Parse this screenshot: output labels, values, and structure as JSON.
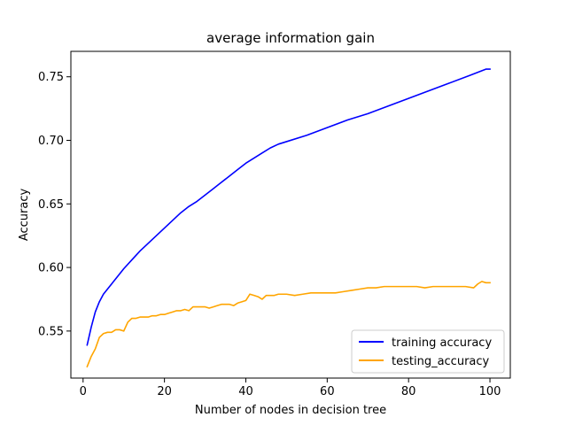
{
  "chart_data": {
    "type": "line",
    "title": "average information gain",
    "xlabel": "Number of nodes in decision tree",
    "ylabel": "Accuracy",
    "xlim": [
      -3,
      105
    ],
    "ylim": [
      0.513,
      0.77
    ],
    "xticks": [
      0,
      20,
      40,
      60,
      80,
      100
    ],
    "xtick_labels": [
      "0",
      "20",
      "40",
      "60",
      "80",
      "100"
    ],
    "yticks": [
      0.55,
      0.6,
      0.65,
      0.7,
      0.75
    ],
    "ytick_labels": [
      "0.55",
      "0.60",
      "0.65",
      "0.70",
      "0.75"
    ],
    "grid": false,
    "legend_position": "lower-right",
    "series": [
      {
        "name": "training accuracy",
        "color": "#0000ff",
        "x": [
          1,
          2,
          3,
          4,
          5,
          6,
          8,
          10,
          12,
          14,
          16,
          18,
          20,
          22,
          24,
          26,
          28,
          30,
          32,
          34,
          36,
          38,
          40,
          42,
          44,
          46,
          48,
          50,
          55,
          60,
          65,
          70,
          75,
          80,
          85,
          90,
          95,
          99,
          100
        ],
        "y": [
          0.539,
          0.553,
          0.565,
          0.573,
          0.579,
          0.583,
          0.591,
          0.599,
          0.606,
          0.613,
          0.619,
          0.625,
          0.631,
          0.637,
          0.643,
          0.648,
          0.652,
          0.657,
          0.662,
          0.667,
          0.672,
          0.677,
          0.682,
          0.686,
          0.69,
          0.694,
          0.697,
          0.699,
          0.704,
          0.71,
          0.716,
          0.721,
          0.727,
          0.733,
          0.739,
          0.745,
          0.751,
          0.756,
          0.756
        ]
      },
      {
        "name": "testing_accuracy",
        "color": "#ffa500",
        "x": [
          1,
          2,
          3,
          4,
          5,
          6,
          7,
          8,
          9,
          10,
          11,
          12,
          13,
          14,
          15,
          16,
          17,
          18,
          19,
          20,
          21,
          22,
          23,
          24,
          25,
          26,
          27,
          28,
          29,
          30,
          31,
          32,
          33,
          34,
          35,
          36,
          37,
          38,
          39,
          40,
          41,
          42,
          43,
          44,
          45,
          46,
          47,
          48,
          49,
          50,
          52,
          54,
          56,
          58,
          60,
          62,
          64,
          66,
          68,
          70,
          72,
          74,
          76,
          78,
          80,
          82,
          84,
          86,
          88,
          90,
          92,
          94,
          96,
          97,
          98,
          99,
          100
        ],
        "y": [
          0.522,
          0.53,
          0.536,
          0.545,
          0.548,
          0.549,
          0.549,
          0.551,
          0.551,
          0.55,
          0.557,
          0.56,
          0.56,
          0.561,
          0.561,
          0.561,
          0.562,
          0.562,
          0.563,
          0.563,
          0.564,
          0.565,
          0.566,
          0.566,
          0.567,
          0.566,
          0.569,
          0.569,
          0.569,
          0.569,
          0.568,
          0.569,
          0.57,
          0.571,
          0.571,
          0.571,
          0.57,
          0.572,
          0.573,
          0.574,
          0.579,
          0.578,
          0.577,
          0.575,
          0.578,
          0.578,
          0.578,
          0.579,
          0.579,
          0.579,
          0.578,
          0.579,
          0.58,
          0.58,
          0.58,
          0.58,
          0.581,
          0.582,
          0.583,
          0.584,
          0.584,
          0.585,
          0.585,
          0.585,
          0.585,
          0.585,
          0.584,
          0.585,
          0.585,
          0.585,
          0.585,
          0.585,
          0.584,
          0.587,
          0.589,
          0.588,
          0.588
        ]
      }
    ]
  }
}
